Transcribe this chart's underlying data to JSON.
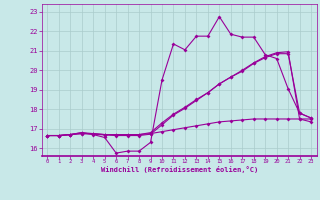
{
  "bg_color": "#c8e8e8",
  "line_color": "#990099",
  "grid_color": "#aacccc",
  "xlabel": "Windchill (Refroidissement éolien,°C)",
  "ylabel_ticks": [
    16,
    17,
    18,
    19,
    20,
    21,
    22,
    23
  ],
  "xticks": [
    0,
    1,
    2,
    3,
    4,
    5,
    6,
    7,
    8,
    9,
    10,
    11,
    12,
    13,
    14,
    15,
    16,
    17,
    18,
    19,
    20,
    21,
    22,
    23
  ],
  "xlim": [
    -0.5,
    23.5
  ],
  "ylim": [
    15.6,
    23.4
  ],
  "series1": {
    "x": [
      0,
      1,
      2,
      3,
      4,
      5,
      6,
      7,
      8,
      9,
      10,
      11,
      12,
      13,
      14,
      15,
      16,
      17,
      18,
      19,
      20,
      21,
      22,
      23
    ],
    "y": [
      16.65,
      16.65,
      16.7,
      16.8,
      16.7,
      16.55,
      15.75,
      15.85,
      15.85,
      16.3,
      19.5,
      21.35,
      21.05,
      21.75,
      21.75,
      22.75,
      21.85,
      21.7,
      21.7,
      20.8,
      20.6,
      19.05,
      17.8,
      17.55
    ]
  },
  "series2": {
    "x": [
      0,
      1,
      2,
      3,
      4,
      5,
      6,
      7,
      8,
      9,
      10,
      11,
      12,
      13,
      14,
      15,
      16,
      17,
      18,
      19,
      20,
      21,
      22,
      23
    ],
    "y": [
      16.65,
      16.65,
      16.7,
      16.75,
      16.75,
      16.7,
      16.7,
      16.7,
      16.7,
      16.75,
      16.85,
      16.95,
      17.05,
      17.15,
      17.25,
      17.35,
      17.4,
      17.45,
      17.5,
      17.5,
      17.5,
      17.5,
      17.5,
      17.5
    ]
  },
  "series3": {
    "x": [
      0,
      1,
      2,
      3,
      4,
      5,
      6,
      7,
      8,
      9,
      10,
      11,
      12,
      13,
      14,
      15,
      16,
      17,
      18,
      19,
      20,
      21,
      22,
      23
    ],
    "y": [
      16.65,
      16.65,
      16.7,
      16.8,
      16.75,
      16.7,
      16.7,
      16.7,
      16.7,
      16.8,
      17.3,
      17.75,
      18.1,
      18.5,
      18.85,
      19.3,
      19.65,
      19.95,
      20.35,
      20.65,
      20.85,
      20.85,
      17.8,
      17.55
    ]
  },
  "series4": {
    "x": [
      0,
      1,
      2,
      3,
      4,
      5,
      6,
      7,
      8,
      9,
      10,
      11,
      12,
      13,
      14,
      15,
      16,
      17,
      18,
      19,
      20,
      21,
      22,
      23
    ],
    "y": [
      16.65,
      16.65,
      16.7,
      16.75,
      16.72,
      16.68,
      16.65,
      16.65,
      16.65,
      16.72,
      17.2,
      17.7,
      18.05,
      18.45,
      18.85,
      19.3,
      19.65,
      20.0,
      20.38,
      20.7,
      20.9,
      20.95,
      17.5,
      17.35
    ]
  }
}
